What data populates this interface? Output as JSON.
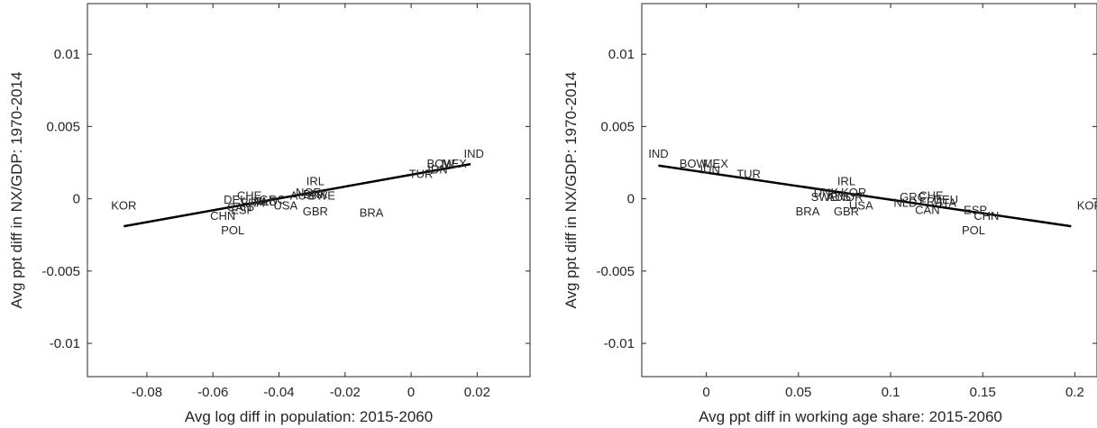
{
  "chart_data": [
    {
      "type": "scatter",
      "title": "",
      "xlabel": "Avg log diff in population: 2015-2060",
      "ylabel": "Avg ppt diff in NX/GDP: 1970-2014",
      "xlim": [
        -0.098,
        0.036
      ],
      "ylim": [
        -0.0123,
        0.0135
      ],
      "xticks": [
        -0.08,
        -0.06,
        -0.04,
        -0.02,
        0,
        0.02
      ],
      "xtick_labels": [
        "-0.08",
        "-0.06",
        "-0.04",
        "-0.02",
        "0",
        "0.02"
      ],
      "yticks": [
        -0.01,
        -0.005,
        0,
        0.005,
        0.01
      ],
      "ytick_labels": [
        "-0.01",
        "-0.005",
        "0",
        "0.005",
        "0.01"
      ],
      "grid": false,
      "points": [
        {
          "label": "KOR",
          "x": -0.087,
          "y": -0.0005
        },
        {
          "label": "CHN",
          "x": -0.057,
          "y": -0.0012
        },
        {
          "label": "POL",
          "x": -0.054,
          "y": -0.0022
        },
        {
          "label": "DEU",
          "x": -0.053,
          "y": -0.0001
        },
        {
          "label": "CAN",
          "x": -0.052,
          "y": -0.0006
        },
        {
          "label": "ESP",
          "x": -0.051,
          "y": -0.0008
        },
        {
          "label": "CHE",
          "x": -0.049,
          "y": 0.0002
        },
        {
          "label": "FRA",
          "x": -0.048,
          "y": -0.0003
        },
        {
          "label": "ITA",
          "x": -0.046,
          "y": -0.0002
        },
        {
          "label": "NLD",
          "x": -0.044,
          "y": -0.0002
        },
        {
          "label": "GRC",
          "x": -0.042,
          "y": -0.0001
        },
        {
          "label": "USA",
          "x": -0.038,
          "y": -0.0005
        },
        {
          "label": "AUS",
          "x": -0.033,
          "y": 0.0002
        },
        {
          "label": "NOR",
          "x": -0.031,
          "y": 0.0004
        },
        {
          "label": "DNK",
          "x": -0.029,
          "y": 0.0003
        },
        {
          "label": "SWE",
          "x": -0.027,
          "y": 0.0002
        },
        {
          "label": "IRL",
          "x": -0.029,
          "y": 0.0012
        },
        {
          "label": "GBR",
          "x": -0.029,
          "y": -0.0009
        },
        {
          "label": "BRA",
          "x": -0.012,
          "y": -0.001
        },
        {
          "label": "TUR",
          "x": 0.003,
          "y": 0.0017
        },
        {
          "label": "IDN",
          "x": 0.008,
          "y": 0.002
        },
        {
          "label": "BOW",
          "x": 0.009,
          "y": 0.0024
        },
        {
          "label": "MEX",
          "x": 0.013,
          "y": 0.0024
        },
        {
          "label": "IND",
          "x": 0.019,
          "y": 0.0031
        }
      ],
      "fit_line": {
        "x": [
          -0.087,
          0.018
        ],
        "y": [
          -0.0019,
          0.0024
        ]
      }
    },
    {
      "type": "scatter",
      "title": "",
      "xlabel": "Avg ppt diff in working age share: 2015-2060",
      "ylabel": "Avg ppt diff in NX/GDP: 1970-2014",
      "xlim": [
        -0.035,
        0.212
      ],
      "ylim": [
        -0.0123,
        0.0135
      ],
      "xticks": [
        0,
        0.05,
        0.1,
        0.15,
        0.2
      ],
      "xtick_labels": [
        "0",
        "0.05",
        "0.1",
        "0.15",
        "0.2"
      ],
      "yticks": [
        -0.01,
        -0.005,
        0,
        0.005,
        0.01
      ],
      "ytick_labels": [
        "-0.01",
        "-0.005",
        "0",
        "0.005",
        "0.01"
      ],
      "grid": false,
      "points": [
        {
          "label": "IND",
          "x": -0.026,
          "y": 0.0031
        },
        {
          "label": "BOW",
          "x": -0.007,
          "y": 0.0024
        },
        {
          "label": "MEX",
          "x": 0.005,
          "y": 0.0024
        },
        {
          "label": "IDN",
          "x": 0.002,
          "y": 0.002
        },
        {
          "label": "TUR",
          "x": 0.023,
          "y": 0.0017
        },
        {
          "label": "IRL",
          "x": 0.076,
          "y": 0.0012
        },
        {
          "label": "DNK",
          "x": 0.065,
          "y": 0.0004
        },
        {
          "label": "KOR",
          "x": 0.08,
          "y": 0.0004
        },
        {
          "label": "SWE",
          "x": 0.064,
          "y": 0.0001
        },
        {
          "label": "AUS",
          "x": 0.072,
          "y": 0.0001
        },
        {
          "label": "NOR",
          "x": 0.078,
          "y": 0.0001
        },
        {
          "label": "USA",
          "x": 0.084,
          "y": -0.0005
        },
        {
          "label": "GBR",
          "x": 0.076,
          "y": -0.0009
        },
        {
          "label": "BRA",
          "x": 0.055,
          "y": -0.0009
        },
        {
          "label": "GRC",
          "x": 0.112,
          "y": 0.0001
        },
        {
          "label": "CHE",
          "x": 0.122,
          "y": 0.0002
        },
        {
          "label": "NLD",
          "x": 0.108,
          "y": -0.0003
        },
        {
          "label": "FRA",
          "x": 0.122,
          "y": -0.0002
        },
        {
          "label": "DEU",
          "x": 0.13,
          "y": -0.0001
        },
        {
          "label": "ITA",
          "x": 0.131,
          "y": -0.0003
        },
        {
          "label": "CAN",
          "x": 0.12,
          "y": -0.0008
        },
        {
          "label": "ESP",
          "x": 0.146,
          "y": -0.0008
        },
        {
          "label": "CHN",
          "x": 0.152,
          "y": -0.0012
        },
        {
          "label": "POL",
          "x": 0.145,
          "y": -0.0022
        },
        {
          "label": "KOR",
          "x": 0.208,
          "y": -0.0005
        }
      ],
      "fit_line": {
        "x": [
          -0.026,
          0.198
        ],
        "y": [
          0.0023,
          -0.0019
        ]
      }
    }
  ]
}
